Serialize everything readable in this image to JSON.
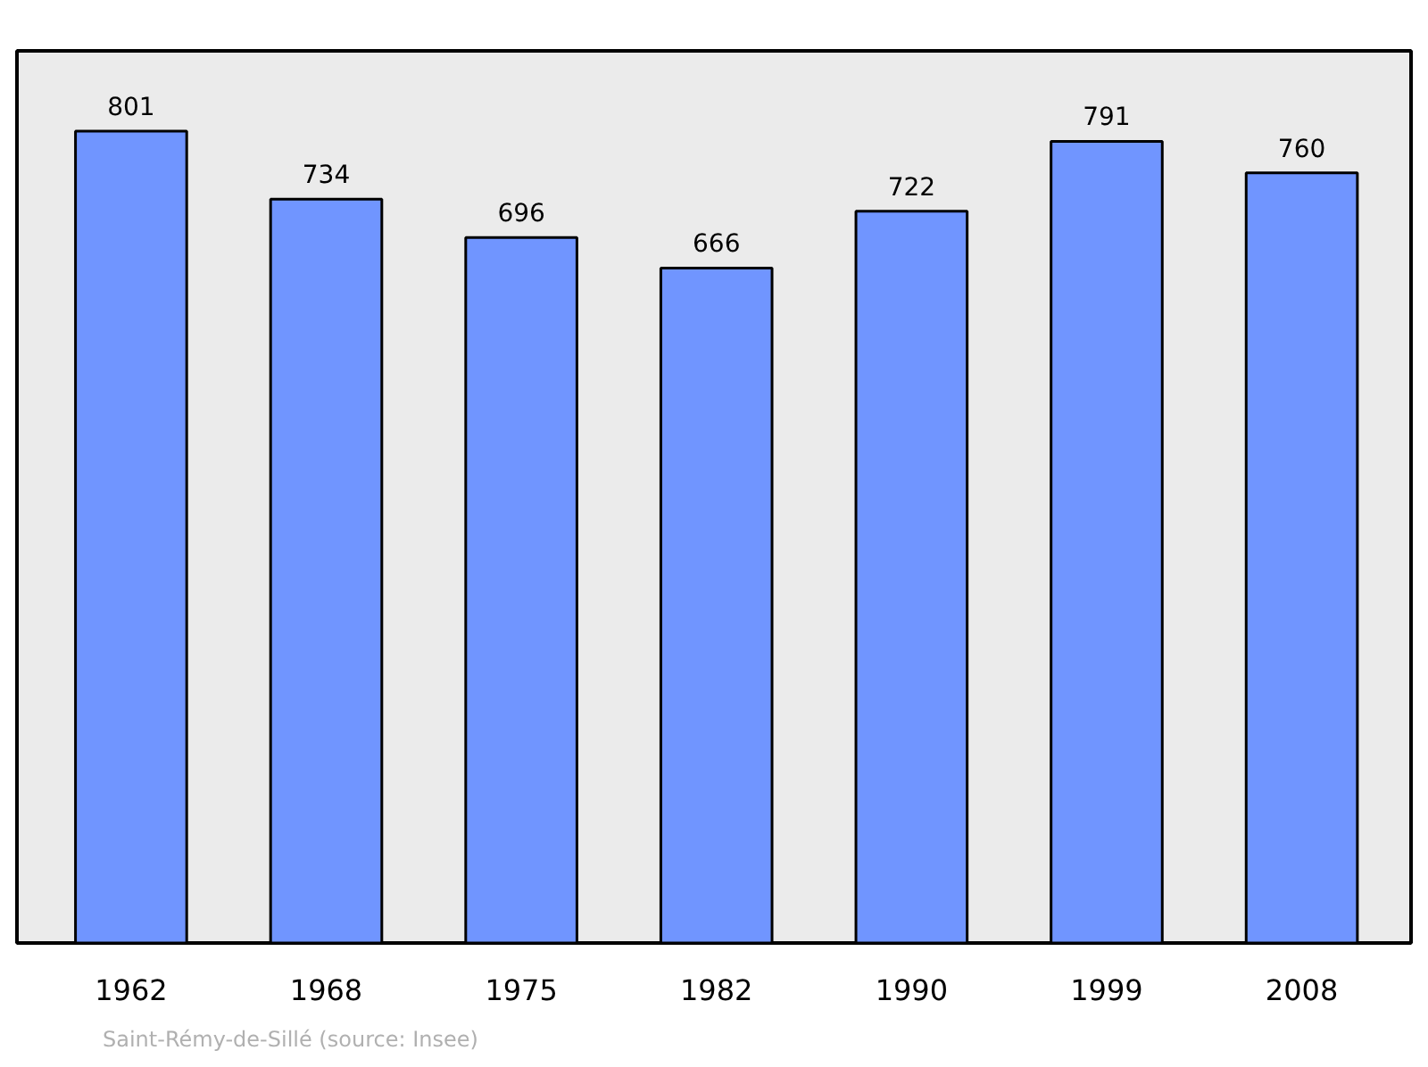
{
  "chart_data": {
    "type": "bar",
    "categories": [
      "1962",
      "1968",
      "1975",
      "1982",
      "1990",
      "1999",
      "2008"
    ],
    "values": [
      801,
      734,
      696,
      666,
      722,
      791,
      760
    ],
    "color": "#7095ff",
    "data_labels": true,
    "grid": false,
    "tick_labels": "x",
    "annotations": [
      "Saint-Rémy-de-Sillé    (source: Insee)"
    ]
  }
}
